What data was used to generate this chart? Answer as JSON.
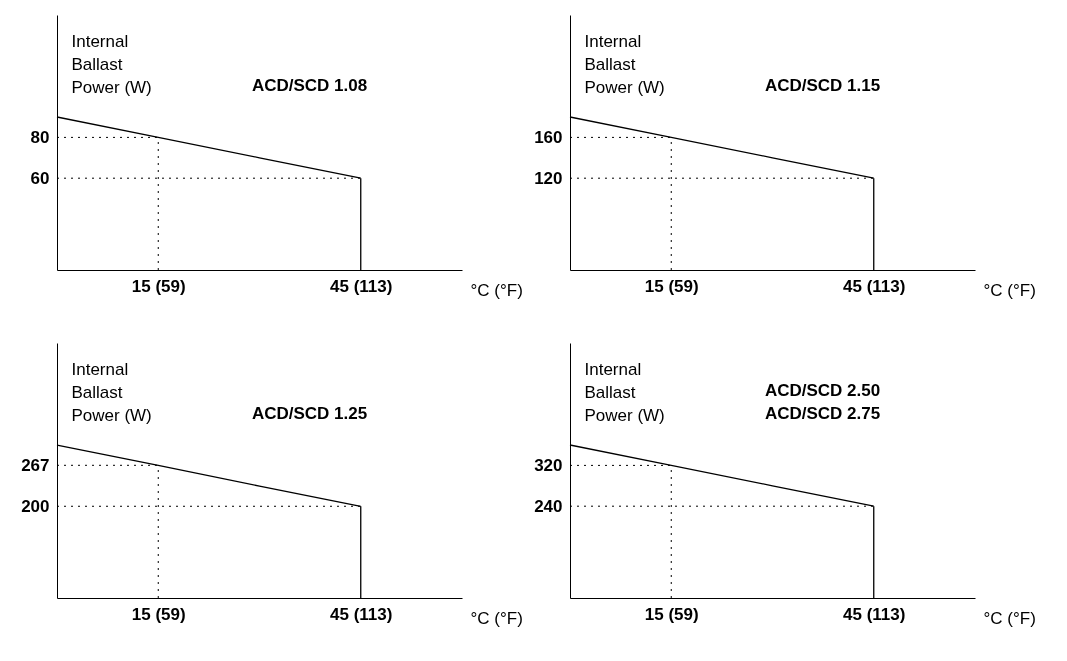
{
  "chart_data": [
    {
      "type": "line",
      "title": "ACD/SCD 1.08",
      "ylabel": "Internal\nBallast\nPower (W)",
      "xlabel": "°C (°F)",
      "categories": [
        null,
        "15 (59)",
        null,
        "45 (113)",
        null
      ],
      "series": [
        {
          "color": "#000000",
          "values": [
            90,
            80,
            70,
            60,
            null
          ]
        }
      ],
      "ylim": [
        15,
        140
      ],
      "yticks": [
        60,
        80
      ],
      "ref_lines": [
        {
          "axis": "y",
          "value": 80,
          "color": "#000000",
          "line_style": "dotted"
        },
        {
          "axis": "y",
          "value": 60,
          "color": "#000000",
          "line_style": "dotted"
        },
        {
          "axis": "x",
          "value": "15 (59)",
          "color": "#000000",
          "line_style": "dotted"
        },
        {
          "axis": "x",
          "value": "45 (113)",
          "color": "#000000",
          "line_style": "solid"
        }
      ],
      "grid": false,
      "line_style": "solid"
    },
    {
      "type": "line",
      "title": "ACD/SCD 1.15",
      "ylabel": "Internal\nBallast\nPower (W)",
      "xlabel": "°C (°F)",
      "categories": [
        null,
        "15 (59)",
        null,
        "45 (113)",
        null
      ],
      "series": [
        {
          "color": "#000000",
          "values": [
            180,
            160,
            140,
            120,
            null
          ]
        }
      ],
      "ylim": [
        30,
        280
      ],
      "yticks": [
        120,
        160
      ],
      "ref_lines": [
        {
          "axis": "y",
          "value": 160,
          "color": "#000000",
          "line_style": "dotted"
        },
        {
          "axis": "y",
          "value": 120,
          "color": "#000000",
          "line_style": "dotted"
        },
        {
          "axis": "x",
          "value": "15 (59)",
          "color": "#000000",
          "line_style": "dotted"
        },
        {
          "axis": "x",
          "value": "45 (113)",
          "color": "#000000",
          "line_style": "solid"
        }
      ],
      "grid": false,
      "line_style": "solid"
    },
    {
      "type": "line",
      "title": "ACD/SCD 1.25",
      "ylabel": "Internal\nBallast\nPower (W)",
      "xlabel": "°C (°F)",
      "categories": [
        null,
        "15 (59)",
        null,
        "45 (113)",
        null
      ],
      "series": [
        {
          "color": "#000000",
          "values": [
            300,
            267,
            233,
            200,
            null
          ]
        }
      ],
      "ylim": [
        50,
        467
      ],
      "yticks": [
        200,
        267
      ],
      "ref_lines": [
        {
          "axis": "y",
          "value": 267,
          "color": "#000000",
          "line_style": "dotted"
        },
        {
          "axis": "y",
          "value": 200,
          "color": "#000000",
          "line_style": "dotted"
        },
        {
          "axis": "x",
          "value": "15 (59)",
          "color": "#000000",
          "line_style": "dotted"
        },
        {
          "axis": "x",
          "value": "45 (113)",
          "color": "#000000",
          "line_style": "solid"
        }
      ],
      "grid": false,
      "line_style": "solid"
    },
    {
      "type": "line",
      "title": "ACD/SCD 2.50\nACD/SCD 2.75",
      "ylabel": "Internal\nBallast\nPower (W)",
      "xlabel": "°C (°F)",
      "categories": [
        null,
        "15 (59)",
        null,
        "45 (113)",
        null
      ],
      "series": [
        {
          "color": "#000000",
          "values": [
            360,
            320,
            280,
            240,
            null
          ]
        }
      ],
      "ylim": [
        60,
        560
      ],
      "yticks": [
        240,
        320
      ],
      "ref_lines": [
        {
          "axis": "y",
          "value": 320,
          "color": "#000000",
          "line_style": "dotted"
        },
        {
          "axis": "y",
          "value": 240,
          "color": "#000000",
          "line_style": "dotted"
        },
        {
          "axis": "x",
          "value": "15 (59)",
          "color": "#000000",
          "line_style": "dotted"
        },
        {
          "axis": "x",
          "value": "45 (113)",
          "color": "#000000",
          "line_style": "solid"
        }
      ],
      "grid": false,
      "line_style": "solid"
    }
  ]
}
